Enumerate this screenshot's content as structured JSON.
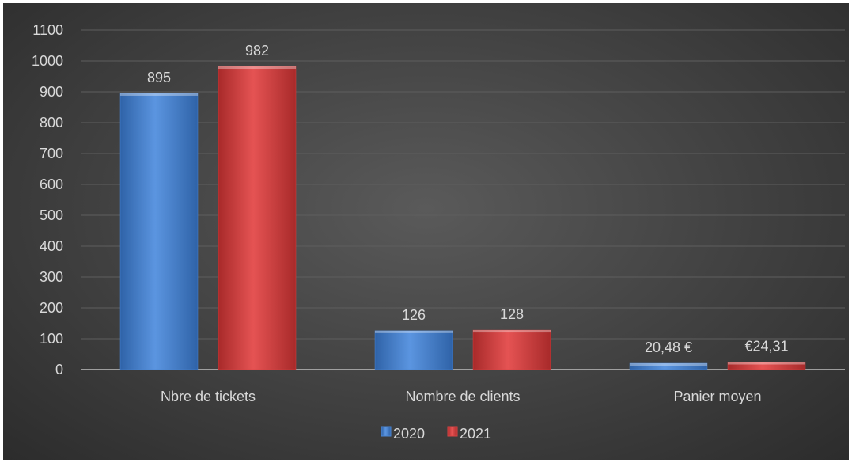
{
  "chart_data": {
    "type": "bar",
    "categories": [
      "Nbre de tickets",
      "Nombre de clients",
      "Panier moyen"
    ],
    "series": [
      {
        "name": "2020",
        "values": [
          895,
          126,
          20.48
        ],
        "labels": [
          "895",
          "126",
          "20,48 €"
        ],
        "color": "#4a86d4"
      },
      {
        "name": "2021",
        "values": [
          982,
          128,
          24.31
        ],
        "labels": [
          "982",
          "128",
          "€24,31"
        ],
        "color": "#d94343"
      }
    ],
    "ylim": [
      0,
      1100
    ],
    "yticks": [
      0,
      100,
      200,
      300,
      400,
      500,
      600,
      700,
      800,
      900,
      1000,
      1100
    ],
    "grid": true,
    "legend": "bottom"
  }
}
